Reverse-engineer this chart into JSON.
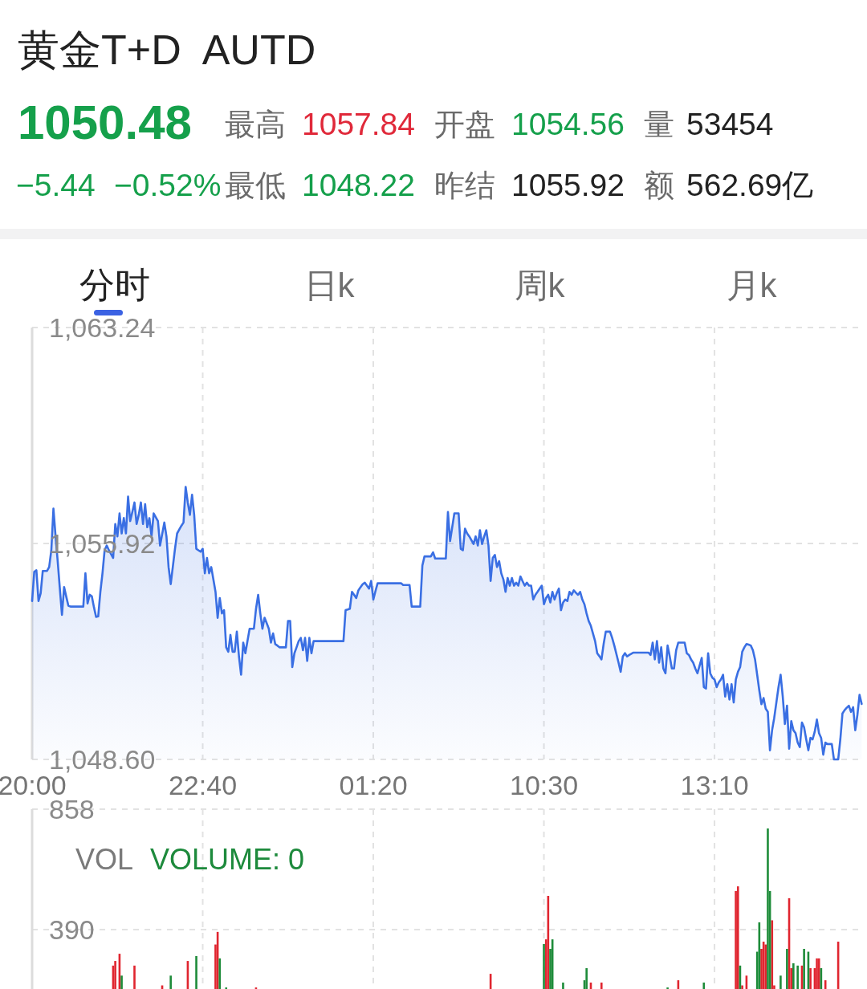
{
  "chart_data": [
    {
      "type": "area",
      "title": "黄金T+D",
      "subtitle": "AUTD",
      "annotations": [
        "1050.48",
        "最高",
        "1057.84",
        "开盘",
        "1054.56",
        "量",
        "53454",
        "−5.44",
        "−0.52%",
        "最低",
        "1048.22",
        "昨结",
        "1055.92",
        "额",
        "562.69亿",
        "分时",
        "日k",
        "周k",
        "月k"
      ],
      "color": "#3a6fe3",
      "categories": [
        "20:00",
        null,
        null,
        null,
        null,
        null,
        null,
        null,
        null,
        null,
        null,
        null,
        null,
        null,
        null,
        null,
        null,
        null,
        null,
        null,
        null,
        null,
        null,
        null,
        null,
        null,
        null,
        null,
        null,
        null,
        null,
        null,
        null,
        null,
        null,
        null,
        null,
        null,
        null,
        null,
        null,
        null,
        null,
        null,
        null,
        null,
        null,
        null,
        null,
        null,
        null,
        null,
        null,
        null,
        null,
        null,
        null,
        null,
        null,
        null,
        null,
        null,
        null,
        null,
        null,
        null,
        null,
        null,
        null,
        null,
        null,
        null,
        null,
        null,
        null,
        null,
        null,
        null,
        null,
        null,
        "22:40",
        null,
        null,
        null,
        null,
        null,
        null,
        null,
        null,
        null,
        null,
        null,
        null,
        null,
        null,
        null,
        null,
        null,
        null,
        null,
        null,
        null,
        null,
        null,
        null,
        null,
        null,
        null,
        null,
        null,
        null,
        null,
        null,
        null,
        null,
        null,
        null,
        null,
        null,
        null,
        null,
        null,
        null,
        null,
        null,
        null,
        null,
        null,
        null,
        null,
        null,
        null,
        null,
        null,
        null,
        null,
        null,
        null,
        null,
        null,
        null,
        null,
        null,
        null,
        null,
        null,
        null,
        null,
        null,
        null,
        null,
        null,
        null,
        null,
        null,
        null,
        null,
        null,
        null,
        null,
        "01:20",
        null,
        null,
        null,
        null,
        null,
        null,
        null,
        null,
        null,
        null,
        null,
        null,
        null,
        null,
        null,
        null,
        null,
        null,
        null,
        null,
        null,
        null,
        null,
        null,
        null,
        null,
        null,
        null,
        null,
        null,
        null,
        null,
        null,
        null,
        null,
        null,
        null,
        null,
        null,
        null,
        null,
        null,
        null,
        null,
        null,
        null,
        null,
        null,
        null,
        null,
        null,
        null,
        null,
        null,
        null,
        null,
        null,
        null,
        null,
        null,
        null,
        null,
        null,
        null,
        null,
        null,
        null,
        null,
        null,
        null,
        null,
        null,
        null,
        null,
        null,
        null,
        null,
        null,
        null,
        "10:30",
        null,
        null,
        null,
        null,
        null,
        null,
        null,
        null,
        null,
        null,
        null,
        null,
        null,
        null,
        null,
        null,
        null,
        null,
        null,
        null,
        null,
        null,
        null,
        null,
        null,
        null,
        null,
        null,
        null,
        null,
        null,
        null,
        null,
        null,
        null,
        null,
        null,
        null,
        null,
        null,
        null,
        null,
        null,
        null,
        null,
        null,
        null,
        null,
        null,
        null,
        null,
        null,
        null,
        null,
        null,
        null,
        null,
        null,
        null,
        null,
        null,
        null,
        null,
        null,
        null,
        null,
        null,
        null,
        null,
        null,
        null,
        null,
        null,
        null,
        null,
        null,
        null,
        null,
        null,
        "13:10",
        null,
        null,
        null,
        null,
        null,
        null,
        null,
        null,
        null,
        null,
        null,
        null,
        null,
        null,
        null,
        null,
        null,
        null,
        null,
        null,
        null,
        null,
        null,
        null,
        null,
        null,
        null,
        null,
        null,
        null,
        null,
        null,
        null,
        null,
        null,
        null,
        null,
        null,
        null,
        null,
        null,
        null,
        null,
        null,
        null,
        null,
        null,
        null,
        null,
        null,
        null,
        null,
        null,
        null,
        null,
        null,
        null,
        null,
        null,
        null,
        null,
        null,
        null,
        null,
        null,
        null,
        null,
        null,
        null
      ],
      "values": [
        1053.97,
        1054.96,
        1055.01,
        1053.97,
        1054.23,
        1054.99,
        1054.99,
        1054.99,
        1055.12,
        1055.69,
        1057.1,
        1056.16,
        1055.32,
        1054.39,
        1053.5,
        1054.44,
        1054.12,
        1053.81,
        1053.78,
        1053.78,
        1053.78,
        1053.78,
        1053.78,
        1053.78,
        1053.78,
        1054.91,
        1053.89,
        1054.18,
        1054.13,
        1053.76,
        1053.43,
        1053.45,
        1054.28,
        1054.91,
        1055.69,
        1055.85,
        1055.69,
        1055.56,
        1055.43,
        1056.58,
        1056.16,
        1056.94,
        1056.26,
        1056.78,
        1056.26,
        1057.51,
        1056.68,
        1056.99,
        1057.31,
        1056.58,
        1056.89,
        1057.31,
        1056.58,
        1057.25,
        1056.47,
        1056.78,
        1056.16,
        1056.94,
        1056.81,
        1056.68,
        1055.85,
        1056.24,
        1056.63,
        1056.16,
        1055.12,
        1054.54,
        1055.14,
        1055.74,
        1056.26,
        1056.39,
        1056.52,
        1056.63,
        1057.84,
        1057.31,
        1056.89,
        1057.57,
        1056.89,
        1055.74,
        1055.69,
        1055.64,
        1055.74,
        1054.91,
        1055.43,
        1054.91,
        1055.12,
        1054.7,
        1054.28,
        1053.4,
        1054.07,
        1053.55,
        1053.66,
        1052.4,
        1052.25,
        1052.82,
        1052.25,
        1052.25,
        1052.93,
        1052.09,
        1051.47,
        1052.56,
        1052.2,
        1052.62,
        1053.03,
        1053.03,
        1053.03,
        1053.71,
        1054.18,
        1053.55,
        1053.03,
        1053.4,
        1053.22,
        1053.03,
        1052.56,
        1052.87,
        1052.51,
        1052.46,
        1052.4,
        1052.4,
        1052.4,
        1052.4,
        1053.29,
        1053.29,
        1051.73,
        1052.2,
        1052.4,
        1052.61,
        1052.72,
        1052.3,
        1052.72,
        1051.94,
        1052.72,
        1052.2,
        1052.61,
        1052.61,
        1052.61,
        1052.61,
        1052.61,
        1052.61,
        1052.61,
        1052.61,
        1052.61,
        1052.61,
        1052.61,
        1052.61,
        1052.61,
        1052.61,
        1052.61,
        1053.66,
        1053.68,
        1053.71,
        1054.28,
        1054.18,
        1054.07,
        1054.33,
        1054.44,
        1054.54,
        1054.59,
        1054.49,
        1054.39,
        1054.65,
        1054.02,
        1054.3,
        1054.57,
        1054.57,
        1054.57,
        1054.57,
        1054.57,
        1054.57,
        1054.57,
        1054.57,
        1054.57,
        1054.57,
        1054.57,
        1054.57,
        1054.51,
        1054.51,
        1054.51,
        1054.51,
        1053.78,
        1053.78,
        1053.78,
        1053.78,
        1053.78,
        1055.17,
        1055.48,
        1055.48,
        1055.48,
        1055.48,
        1055.62,
        1055.41,
        1055.41,
        1055.41,
        1055.41,
        1055.41,
        1055.41,
        1056.99,
        1056.0,
        1056.47,
        1056.94,
        1056.94,
        1056.94,
        1055.74,
        1055.69,
        1056.42,
        1056.26,
        1056.16,
        1056.03,
        1055.9,
        1056.16,
        1055.85,
        1056.37,
        1055.9,
        1056.16,
        1056.37,
        1055.85,
        1054.65,
        1055.43,
        1055.53,
        1055.12,
        1055.32,
        1054.91,
        1054.7,
        1054.28,
        1054.75,
        1054.49,
        1054.75,
        1054.49,
        1054.59,
        1054.49,
        1054.8,
        1054.64,
        1054.49,
        1054.59,
        1054.49,
        1054.49,
        1054.02,
        1054.18,
        1054.28,
        1054.39,
        1054.49,
        1053.86,
        1054.07,
        1054.18,
        1053.92,
        1054.28,
        1054.02,
        1054.23,
        1054.39,
        1053.66,
        1053.92,
        1054.02,
        1053.97,
        1054.28,
        1054.18,
        1054.33,
        1054.25,
        1054.18,
        1054.28,
        1054.02,
        1053.86,
        1053.55,
        1053.29,
        1053.13,
        1052.87,
        1052.61,
        1052.2,
        1052.1,
        1051.99,
        1052.51,
        1052.93,
        1052.93,
        1052.93,
        1052.72,
        1052.46,
        1052.17,
        1051.88,
        1051.57,
        1052.09,
        1052.2,
        1052.09,
        1052.14,
        1052.18,
        1052.22,
        1052.22,
        1052.22,
        1052.22,
        1052.22,
        1052.22,
        1052.22,
        1052.22,
        1052.14,
        1052.56,
        1051.99,
        1052.61,
        1051.88,
        1052.4,
        1051.68,
        1051.52,
        1052.46,
        1052.09,
        1051.68,
        1051.68,
        1052.3,
        1052.56,
        1052.56,
        1052.56,
        1052.56,
        1052.2,
        1052.14,
        1051.99,
        1051.88,
        1051.68,
        1051.52,
        1051.78,
        1052.04,
        1051.05,
        1051.0,
        1052.2,
        1051.52,
        1051.37,
        1051.31,
        1051.05,
        1051.21,
        1051.31,
        1051.47,
        1050.73,
        1051.15,
        1050.63,
        1051.15,
        1050.53,
        1051.31,
        1051.57,
        1051.73,
        1052.25,
        1052.4,
        1052.51,
        1052.49,
        1052.46,
        1052.3,
        1051.99,
        1051.47,
        1050.94,
        1050.47,
        1050.68,
        1050.32,
        1050.21,
        1048.91,
        1049.59,
        1050.01,
        1050.53,
        1051.05,
        1051.47,
        1050.73,
        1049.8,
        1050.42,
        1048.96,
        1049.9,
        1049.59,
        1049.49,
        1049.17,
        1049.02,
        1049.85,
        1049.69,
        1049.28,
        1048.91,
        1049.33,
        1049.28,
        1049.54,
        1049.95,
        1049.49,
        1049.33,
        1048.76,
        1049.17,
        1049.12,
        1049.12,
        1049.12,
        1048.6,
        1048.6,
        1048.6,
        1049.28,
        1050.16,
        1050.27,
        1050.35,
        1050.42,
        1050.21,
        1050.37,
        1049.59,
        1050.11,
        1050.79,
        1050.48
      ],
      "ylim": [
        1048.6,
        1063.24
      ],
      "yticks": [
        {
          "value": 1048.6,
          "label": "1,048.60"
        },
        {
          "value": 1055.92,
          "label": "1,055.92"
        },
        {
          "value": 1063.24,
          "label": "1,063.24"
        }
      ],
      "grid": true
    },
    {
      "type": "bar",
      "annotations": [
        "VOL",
        "VOLUME: 0"
      ],
      "categories": [
        null,
        null,
        null,
        null,
        null,
        null,
        null,
        null,
        null,
        null,
        null,
        null,
        null,
        null,
        null,
        null,
        null,
        null,
        null,
        null,
        null,
        null,
        null,
        null,
        null,
        null,
        null,
        null,
        null,
        null,
        null,
        null,
        null,
        null,
        null,
        null,
        null,
        null,
        null,
        null,
        null,
        null,
        null,
        null,
        null,
        null,
        null,
        null,
        null,
        null,
        null,
        null,
        null,
        null,
        null,
        null,
        null,
        null,
        null,
        null,
        null,
        null,
        null,
        null,
        null,
        null,
        null,
        null,
        null,
        null,
        null,
        null,
        null,
        null,
        null,
        null,
        null,
        null,
        null,
        null,
        null,
        null,
        null,
        null,
        null,
        null,
        null,
        null,
        null,
        null,
        null,
        null,
        null,
        null,
        null,
        null,
        null,
        null,
        null,
        null,
        null,
        null,
        null,
        null,
        null,
        null,
        null,
        null,
        null,
        null,
        null,
        null,
        null,
        null,
        null,
        null,
        null,
        null,
        null,
        null,
        null,
        null,
        null,
        null,
        null,
        null,
        null,
        null,
        null,
        null,
        null,
        null,
        null,
        null,
        null,
        null,
        null,
        null,
        null,
        null,
        null,
        null,
        null,
        null,
        null,
        null,
        null,
        null,
        null,
        null,
        null,
        null,
        null,
        null,
        null,
        null,
        null,
        null,
        null,
        null,
        null,
        null,
        null,
        null,
        null,
        null,
        null,
        null,
        null,
        null,
        null,
        null,
        null,
        null,
        null,
        null,
        null,
        null,
        null,
        null,
        null,
        null,
        null,
        null,
        null,
        null,
        null,
        null,
        null,
        null,
        null,
        null,
        null,
        null,
        null,
        null,
        null,
        null,
        null,
        null,
        null,
        null,
        null,
        null,
        null,
        null,
        null,
        null,
        null,
        null,
        null,
        null,
        null,
        null,
        null,
        null,
        null,
        null,
        null,
        null,
        null,
        null,
        null,
        null,
        null,
        null,
        null,
        null,
        null,
        null,
        null,
        null,
        null,
        null,
        null,
        null,
        null,
        null,
        null,
        null,
        null,
        null,
        null,
        null,
        null,
        null,
        null,
        null,
        null,
        null,
        null,
        null,
        null,
        null,
        null,
        null,
        null,
        null,
        null,
        null,
        null,
        null,
        null,
        null,
        null,
        null,
        null,
        null,
        null,
        null,
        null,
        null,
        null,
        null,
        null,
        null,
        null,
        null,
        null,
        null,
        null,
        null,
        null,
        null,
        null,
        null,
        null,
        null,
        null,
        null,
        null,
        null,
        null,
        null,
        null,
        null,
        null,
        null,
        null,
        null,
        null,
        null,
        null,
        null,
        null,
        null,
        null,
        null,
        null,
        null,
        null,
        null,
        null,
        null,
        null,
        null,
        null,
        null,
        null,
        null,
        null,
        null,
        null,
        null,
        null,
        null,
        null,
        null,
        null,
        null,
        null,
        null,
        null,
        null,
        null,
        null,
        null,
        null,
        null,
        null,
        null,
        null,
        null,
        null,
        null,
        null,
        null,
        null,
        null,
        null,
        null,
        null,
        null,
        null,
        null,
        null,
        null,
        null,
        null,
        null,
        null,
        null,
        null,
        null,
        null,
        null,
        null,
        null,
        null,
        null,
        null,
        null,
        null,
        null,
        null,
        null,
        null,
        null,
        null,
        null,
        null,
        null,
        null,
        null,
        null,
        null,
        null,
        null,
        null,
        null
      ],
      "series": [
        {
          "color": "#e0252f",
          "values": [
            null,
            null,
            null,
            null,
            null,
            null,
            null,
            null,
            null,
            null,
            null,
            null,
            null,
            null,
            null,
            null,
            null,
            null,
            null,
            null,
            null,
            null,
            null,
            null,
            null,
            null,
            null,
            null,
            null,
            null,
            null,
            null,
            null,
            null,
            null,
            null,
            null,
            null,
            250,
            268,
            null,
            296,
            null,
            null,
            null,
            null,
            null,
            null,
            250,
            null,
            null,
            null,
            null,
            null,
            null,
            null,
            null,
            null,
            null,
            null,
            null,
            173,
            null,
            null,
            null,
            null,
            null,
            null,
            null,
            null,
            null,
            null,
            null,
            268,
            null,
            null,
            null,
            null,
            null,
            null,
            null,
            null,
            null,
            null,
            null,
            null,
            332,
            381,
            null,
            null,
            null,
            null,
            null,
            null,
            null,
            null,
            null,
            null,
            null,
            null,
            null,
            null,
            null,
            null,
            null,
            165,
            null,
            null,
            null,
            null,
            null,
            null,
            null,
            null,
            null,
            null,
            null,
            null,
            null,
            null,
            null,
            null,
            null,
            null,
            null,
            null,
            null,
            null,
            null,
            null,
            null,
            null,
            null,
            null,
            null,
            null,
            null,
            null,
            null,
            null,
            null,
            null,
            null,
            null,
            null,
            null,
            null,
            null,
            null,
            null,
            null,
            null,
            null,
            null,
            null,
            null,
            null,
            null,
            null,
            null,
            null,
            null,
            null,
            null,
            null,
            null,
            null,
            null,
            null,
            null,
            null,
            null,
            null,
            null,
            null,
            null,
            null,
            null,
            null,
            null,
            null,
            null,
            null,
            null,
            null,
            null,
            null,
            null,
            null,
            null,
            null,
            null,
            null,
            null,
            null,
            null,
            null,
            null,
            null,
            null,
            null,
            null,
            null,
            null,
            null,
            null,
            null,
            null,
            null,
            null,
            null,
            null,
            null,
            null,
            null,
            218,
            null,
            null,
            null,
            null,
            null,
            null,
            null,
            null,
            null,
            null,
            null,
            null,
            null,
            null,
            null,
            null,
            null,
            null,
            null,
            null,
            null,
            null,
            null,
            null,
            null,
            352,
            521,
            null,
            null,
            null,
            null,
            null,
            null,
            null,
            null,
            null,
            null,
            null,
            null,
            null,
            null,
            null,
            null,
            null,
            null,
            null,
            184,
            null,
            null,
            null,
            null,
            184,
            null,
            null,
            null,
            null,
            null,
            null,
            null,
            null,
            null,
            null,
            null,
            null,
            null,
            null,
            null,
            null,
            null,
            null,
            null,
            null,
            null,
            null,
            null,
            null,
            null,
            null,
            null,
            null,
            null,
            null,
            null,
            null,
            null,
            null,
            null,
            193,
            null,
            null,
            null,
            null,
            null,
            null,
            null,
            null,
            null,
            null,
            null,
            null,
            null,
            null,
            null,
            null,
            null,
            null,
            null,
            null,
            null,
            null,
            null,
            null,
            null,
            null,
            540,
            558,
            null,
            173,
            null,
            211,
            null,
            null,
            null,
            null,
            null,
            null,
            315,
            343,
            332,
            null,
            null,
            426,
            173,
            null,
            null,
            null,
            null,
            null,
            null,
            512,
            240,
            null,
            null,
            null,
            null,
            250,
            null,
            null,
            null,
            240,
            null,
            240,
            278,
            278,
            null,
            null,
            193,
            null,
            null,
            null,
            null,
            null,
            343,
            null,
            null,
            null,
            null,
            null,
            null,
            null,
            null,
            null,
            null,
            null
          ]
        },
        {
          "color": "#1e8c3a",
          "values": [
            null,
            null,
            null,
            null,
            null,
            null,
            null,
            null,
            null,
            null,
            null,
            null,
            null,
            null,
            null,
            null,
            null,
            null,
            null,
            null,
            null,
            null,
            null,
            null,
            null,
            null,
            null,
            null,
            null,
            null,
            null,
            null,
            null,
            null,
            null,
            null,
            null,
            null,
            null,
            null,
            null,
            null,
            211,
            null,
            null,
            null,
            null,
            null,
            null,
            null,
            null,
            null,
            null,
            null,
            null,
            null,
            null,
            null,
            null,
            null,
            null,
            null,
            null,
            null,
            null,
            211,
            null,
            null,
            null,
            null,
            null,
            null,
            null,
            null,
            null,
            null,
            null,
            287,
            null,
            null,
            null,
            null,
            null,
            null,
            null,
            null,
            null,
            null,
            278,
            null,
            null,
            165,
            null,
            null,
            null,
            null,
            null,
            null,
            null,
            null,
            null,
            null,
            null,
            null,
            null,
            null,
            null,
            null,
            null,
            null,
            null,
            null,
            null,
            null,
            null,
            null,
            null,
            null,
            null,
            null,
            null,
            null,
            null,
            null,
            null,
            null,
            null,
            null,
            null,
            null,
            null,
            null,
            null,
            null,
            null,
            null,
            null,
            null,
            null,
            null,
            null,
            null,
            null,
            null,
            null,
            null,
            null,
            null,
            null,
            null,
            null,
            null,
            null,
            null,
            null,
            null,
            null,
            null,
            null,
            null,
            null,
            null,
            null,
            null,
            null,
            null,
            null,
            null,
            null,
            null,
            null,
            null,
            null,
            null,
            null,
            null,
            null,
            null,
            null,
            null,
            null,
            null,
            null,
            null,
            null,
            null,
            null,
            null,
            null,
            null,
            null,
            null,
            null,
            null,
            null,
            null,
            null,
            null,
            null,
            null,
            null,
            null,
            null,
            null,
            null,
            null,
            null,
            null,
            null,
            null,
            null,
            null,
            null,
            null,
            null,
            null,
            null,
            null,
            null,
            null,
            null,
            null,
            null,
            null,
            null,
            null,
            null,
            null,
            null,
            null,
            null,
            null,
            null,
            null,
            null,
            null,
            null,
            null,
            null,
            null,
            334,
            null,
            null,
            315,
            352,
            null,
            null,
            null,
            null,
            184,
            null,
            null,
            null,
            null,
            null,
            null,
            null,
            null,
            null,
            193,
            240,
            null,
            null,
            null,
            null,
            null,
            null,
            null,
            null,
            null,
            null,
            null,
            null,
            null,
            null,
            null,
            null,
            null,
            null,
            null,
            null,
            null,
            null,
            null,
            null,
            null,
            null,
            null,
            null,
            null,
            null,
            null,
            null,
            null,
            null,
            null,
            null,
            null,
            165,
            null,
            null,
            null,
            null,
            null,
            null,
            null,
            null,
            null,
            null,
            null,
            null,
            null,
            null,
            null,
            null,
            184,
            null,
            null,
            null,
            null,
            null,
            null,
            null,
            null,
            null,
            null,
            null,
            null,
            null,
            null,
            null,
            null,
            250,
            null,
            null,
            null,
            null,
            null,
            null,
            null,
            304,
            418,
            null,
            null,
            null,
            783,
            540,
            null,
            null,
            null,
            null,
            211,
            null,
            null,
            315,
            null,
            null,
            259,
            null,
            250,
            null,
            null,
            315,
            null,
            304,
            null,
            null,
            null,
            null,
            null,
            240,
            null,
            null,
            null,
            null,
            null,
            null,
            null,
            null,
            null,
            null,
            null,
            null,
            null,
            null,
            null,
            null,
            null,
            null,
            null
          ]
        }
      ],
      "ylim": [
        159,
        858
      ],
      "yticks": [
        390,
        858
      ],
      "grid": true,
      "tick_labels": "y"
    }
  ]
}
